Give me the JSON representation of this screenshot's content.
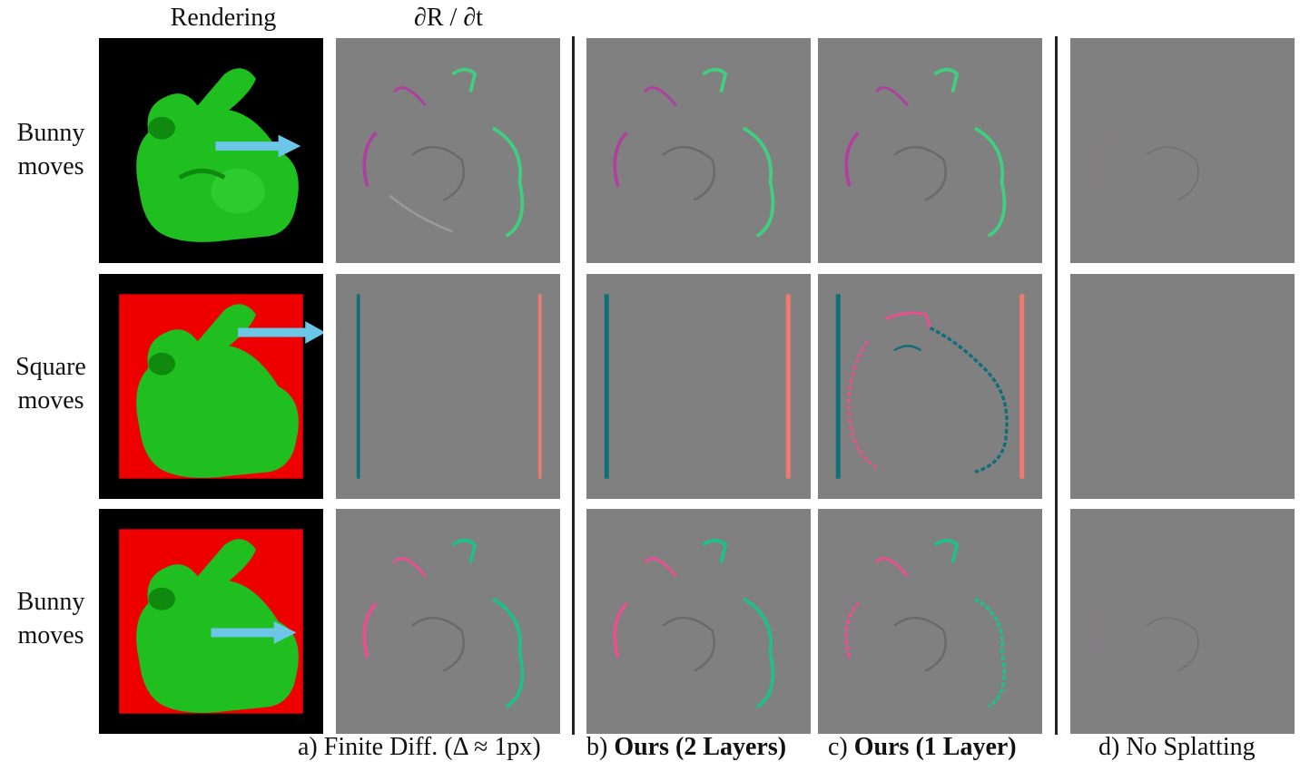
{
  "headers": {
    "rendering": "Rendering",
    "derivative": "∂R / ∂t"
  },
  "rows": [
    {
      "line1": "Bunny",
      "line2": "moves"
    },
    {
      "line1": "Square",
      "line2": "moves"
    },
    {
      "line1": "Bunny",
      "line2": "moves"
    }
  ],
  "captions": {
    "a": {
      "prefix": "a) ",
      "text": "Finite Diff. (Δ ≈ 1px)"
    },
    "b": {
      "prefix": "b) ",
      "text": "Ours (2 Layers)"
    },
    "c": {
      "prefix": "c) ",
      "text": "Ours (1 Layer)"
    },
    "d": {
      "prefix": "d) ",
      "text": "No Splatting"
    }
  },
  "colors": {
    "bunny": "#1fbf1f",
    "square": "#ee0000",
    "background": "#000000",
    "gradient_gray": "#808080",
    "arrow": "#6cc6e8",
    "positive_green": "#3fd07f",
    "negative_magenta": "#b0409f",
    "teal": "#0f6f78",
    "salmon": "#f07a70",
    "pink": "#e8508f"
  }
}
